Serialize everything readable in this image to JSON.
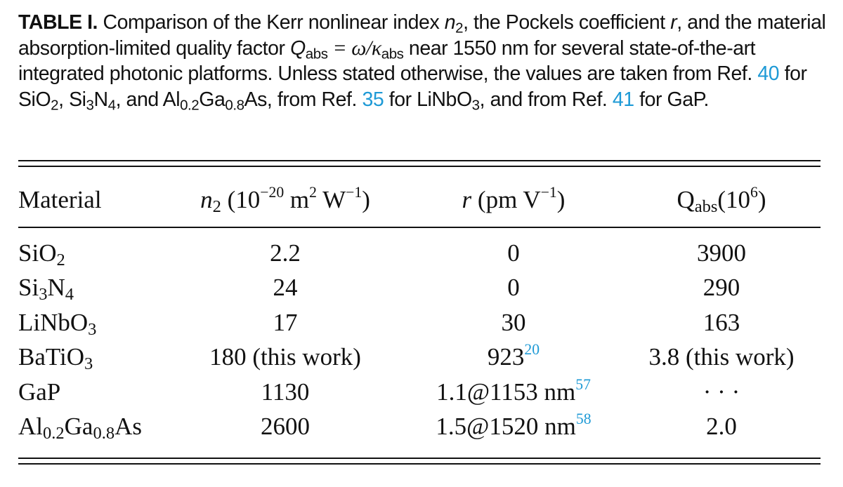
{
  "caption": {
    "label": "TABLE I.",
    "text_1": " Comparison of the Kerr nonlinear index ",
    "n": "n",
    "n_sub": "2",
    "text_2": ", the Pockels coefficient ",
    "r": "r",
    "text_3": ", and the material absorption-limited quality factor ",
    "Q": "Q",
    "Q_sub": "abs",
    "eq": " = ω/κ",
    "kappa_sub": "abs",
    "text_4": " near 1550 nm for several state-of-the-art integrated photonic platforms. Unless stated otherwise, the values are taken from Ref. ",
    "ref_40": "40",
    "text_5": " for SiO",
    "sio2_sub": "2",
    "text_6": ", Si",
    "si_sub": "3",
    "text_7": "N",
    "n4_sub": "4",
    "text_8": ", and Al",
    "al_sub": "0.2",
    "text_9": "Ga",
    "ga_sub": "0.8",
    "text_10": "As, from Ref. ",
    "ref_35": "35",
    "text_11": " for LiNbO",
    "linbo_sub": "3",
    "text_12": ", and from Ref. ",
    "ref_41": "41",
    "text_13": " for GaP."
  },
  "header": {
    "material": "Material",
    "n2_sym": "n",
    "n2_sub": "2",
    "n2_unit_a": " (10",
    "n2_exp": "−20",
    "n2_unit_b": " m",
    "n2_exp2": "2",
    "n2_unit_c": " W",
    "n2_exp3": "−1",
    "n2_unit_d": ")",
    "r_sym": "r",
    "r_unit_a": " (pm V",
    "r_exp": "−1",
    "r_unit_b": ")",
    "q_sym": "Q",
    "q_sub": "abs",
    "q_unit_a": "(10",
    "q_exp": "6",
    "q_unit_b": ")"
  },
  "rows": [
    {
      "mat": "SiO",
      "mat_sub": "2",
      "mat_tail": "",
      "mat_sub2": "",
      "mat_tail2": "",
      "n2": "2.2",
      "r": "0",
      "r_ref": "",
      "q": "3900"
    },
    {
      "mat": "Si",
      "mat_sub": "3",
      "mat_tail": "N",
      "mat_sub2": "4",
      "mat_tail2": "",
      "n2": "24",
      "r": "0",
      "r_ref": "",
      "q": "290"
    },
    {
      "mat": "LiNbO",
      "mat_sub": "3",
      "mat_tail": "",
      "mat_sub2": "",
      "mat_tail2": "",
      "n2": "17",
      "r": "30",
      "r_ref": "",
      "q": "163"
    },
    {
      "mat": "BaTiO",
      "mat_sub": "3",
      "mat_tail": "",
      "mat_sub2": "",
      "mat_tail2": "",
      "n2": "180 (this work)",
      "r": "923",
      "r_ref": "20",
      "q": "3.8 (this work)"
    },
    {
      "mat": "GaP",
      "mat_sub": "",
      "mat_tail": "",
      "mat_sub2": "",
      "mat_tail2": "",
      "n2": "1130",
      "r": "1.1@1153 nm",
      "r_ref": "57",
      "q": "· · ·"
    },
    {
      "mat": "Al",
      "mat_sub": "0.2",
      "mat_tail": "Ga",
      "mat_sub2": "0.8",
      "mat_tail2": "As",
      "n2": "2600",
      "r": "1.5@1520 nm",
      "r_ref": "58",
      "q": "2.0"
    }
  ]
}
